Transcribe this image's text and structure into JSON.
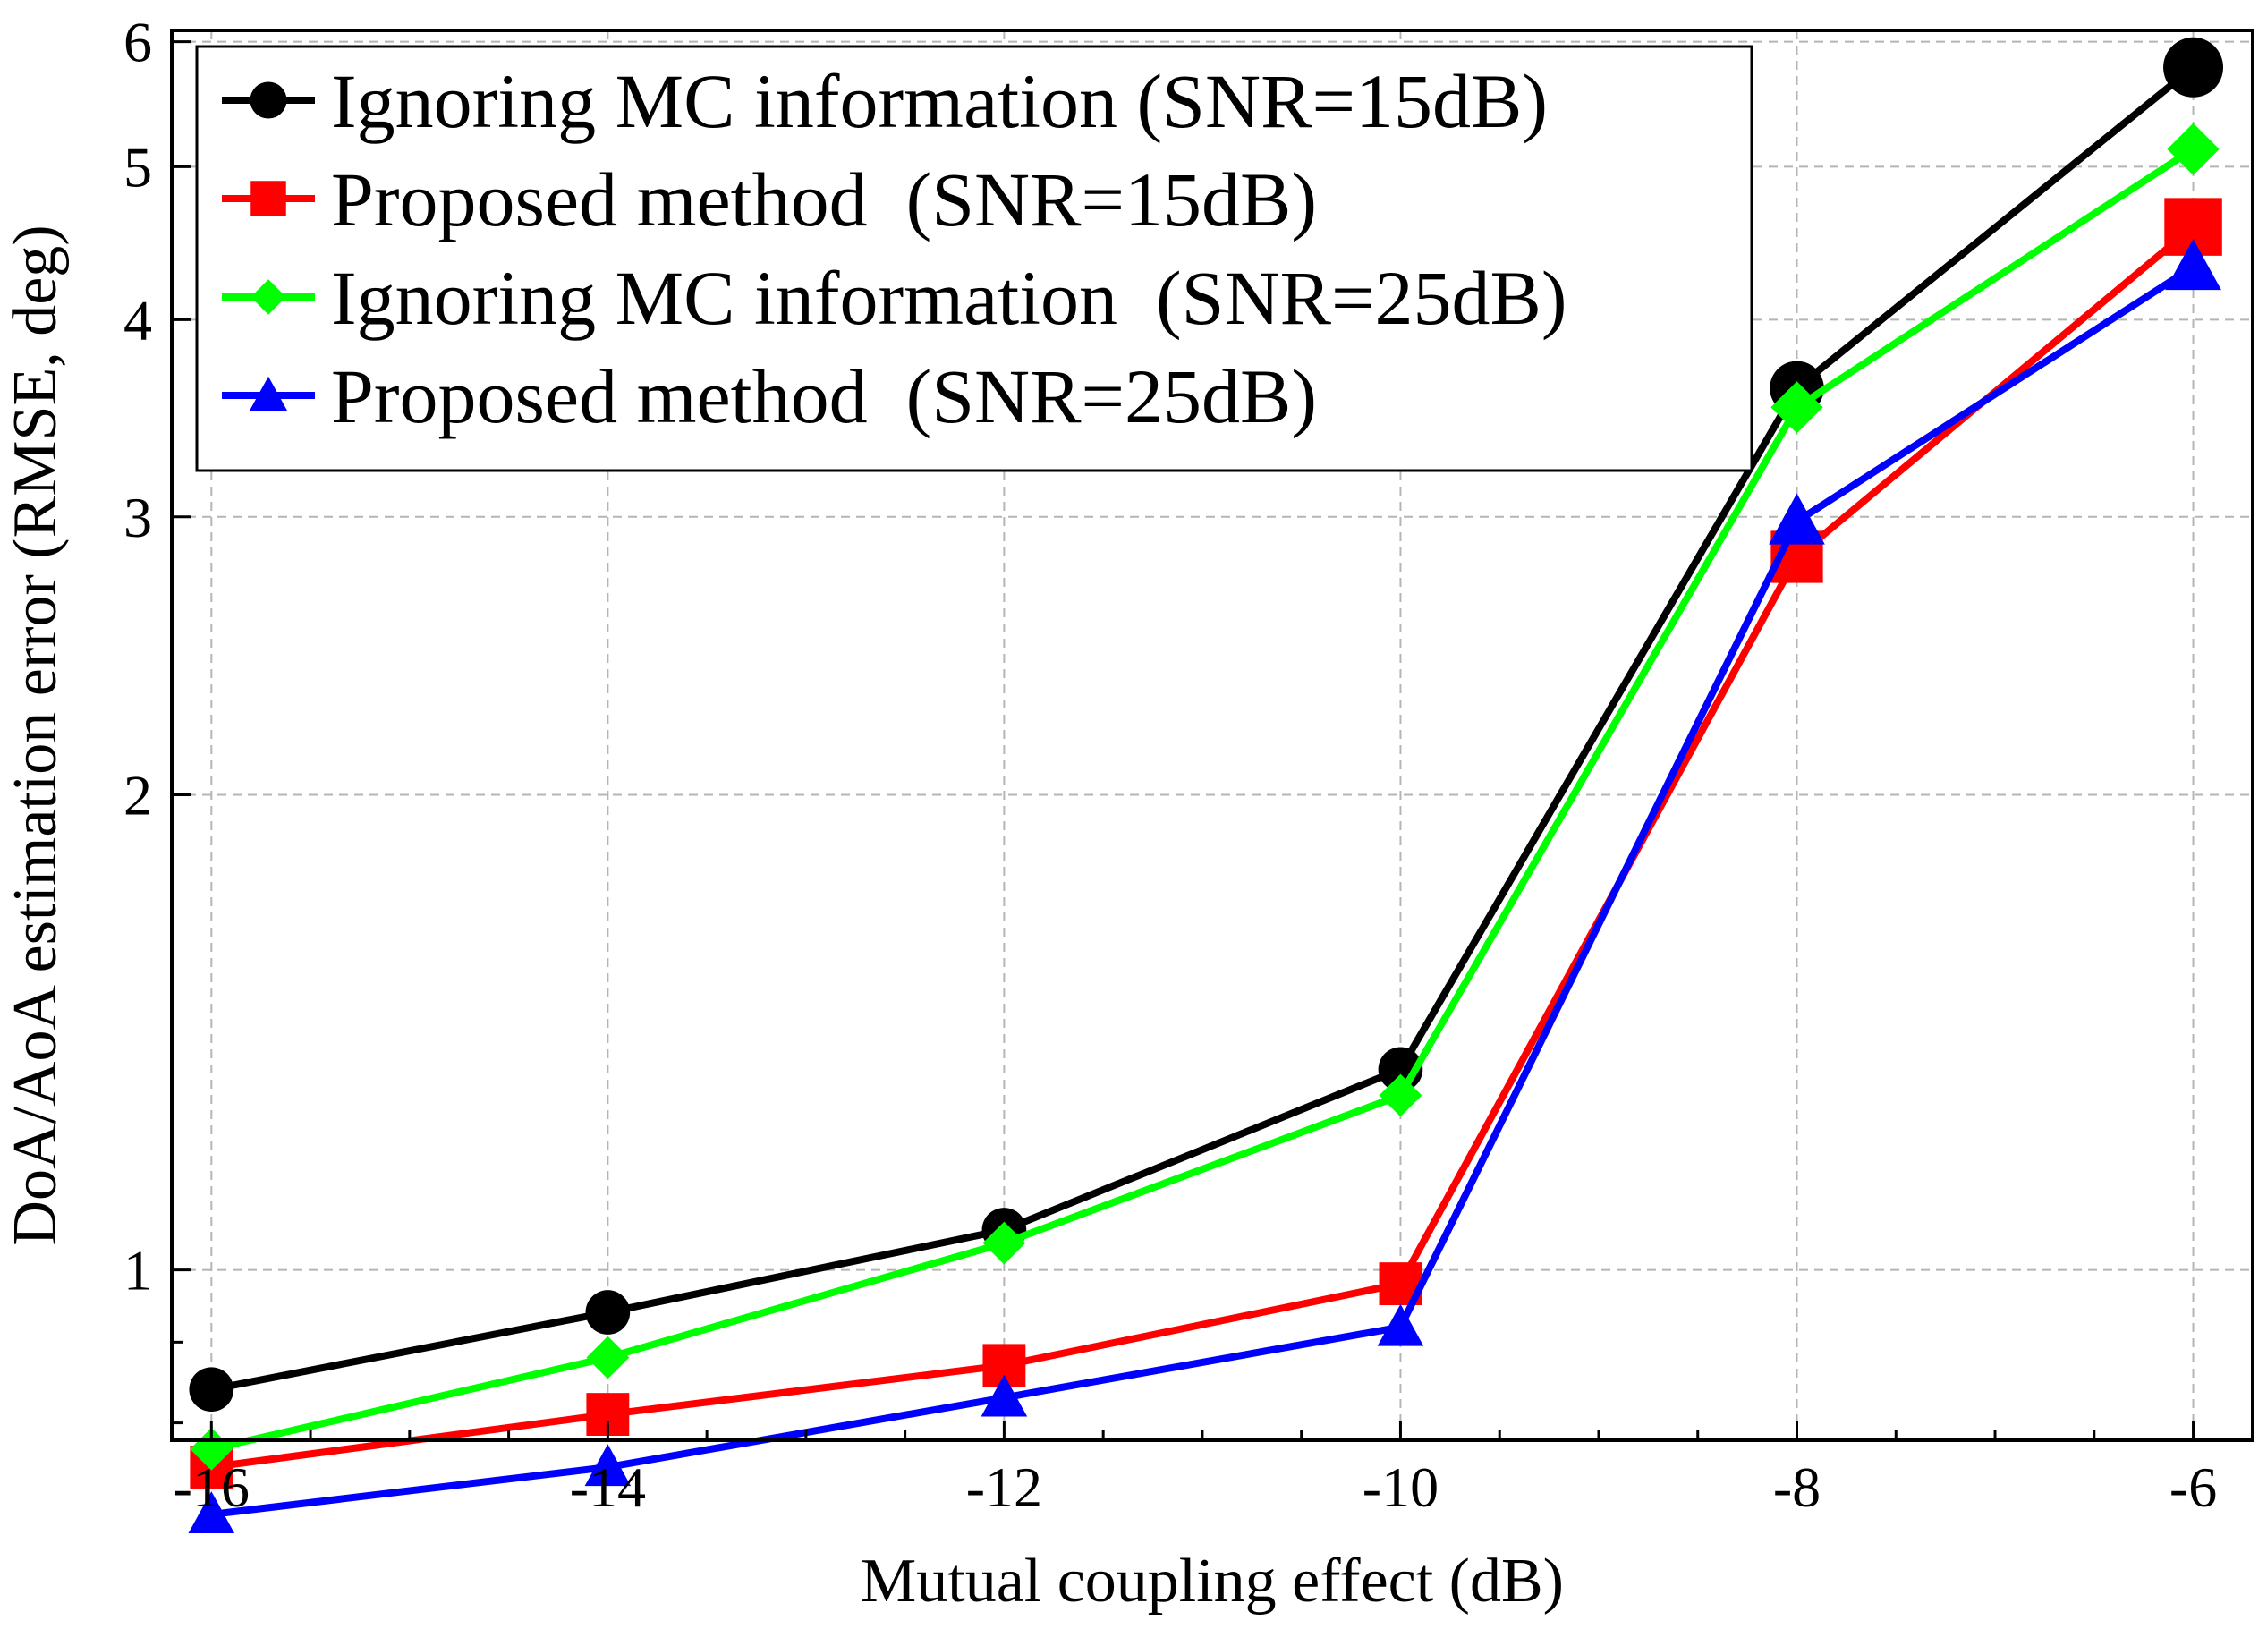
{
  "chart_data": {
    "type": "line",
    "title": "",
    "xlabel": "Mutual coupling effect (dB)",
    "ylabel": "DoA/AoA estimation error (RMSE, deg)",
    "yscale": "log",
    "xlim": [
      -16.2,
      -5.7
    ],
    "ylim": [
      0.78,
      6.1
    ],
    "x": [
      -16,
      -14,
      -12,
      -10,
      -8,
      -6
    ],
    "x_tick_labels": [
      "-16",
      "-14",
      "-12",
      "-10",
      "-8",
      "-6"
    ],
    "y_ticks": [
      1,
      2,
      3,
      4,
      5,
      6
    ],
    "y_tick_labels": [
      "1",
      "2",
      "3",
      "4",
      "5",
      "6"
    ],
    "grid": true,
    "legend_position": "top-left",
    "series": [
      {
        "name": "Ignoring MC information (SNR=15dB)",
        "color": "#000000",
        "marker": "circle",
        "values": [
          0.84,
          0.94,
          1.06,
          1.34,
          3.62,
          5.78
        ]
      },
      {
        "name": "Proposed method  (SNR=15dB)",
        "color": "#ff0000",
        "marker": "square",
        "values": [
          0.75,
          0.81,
          0.87,
          0.98,
          2.83,
          4.58
        ]
      },
      {
        "name": "Ignoring MC information  (SNR=25dB)",
        "color": "#00ff00",
        "marker": "diamond",
        "values": [
          0.77,
          0.88,
          1.04,
          1.29,
          3.52,
          5.13
        ]
      },
      {
        "name": "Proposed method  (SNR=25dB)",
        "color": "#0000ff",
        "marker": "triangle",
        "values": [
          0.7,
          0.75,
          0.83,
          0.92,
          2.98,
          4.32
        ]
      }
    ]
  }
}
